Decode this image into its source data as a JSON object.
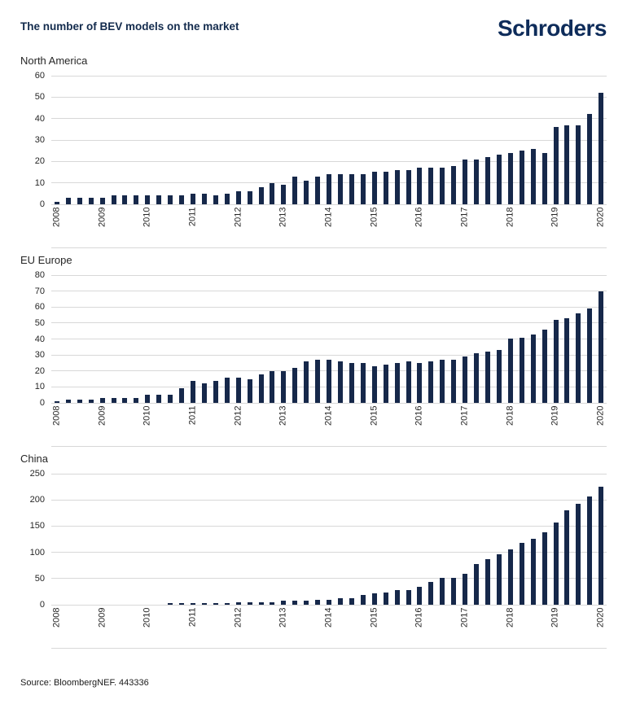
{
  "header": {
    "title": "The number of BEV models on the market",
    "logo_text": "Schroders"
  },
  "footer": {
    "source": "Source: BloombergNEF. 443336"
  },
  "colors": {
    "title_navy": "#132B4D",
    "logo_navy": "#0E2C5A",
    "bar": "#16284A",
    "gridline": "#D8D8D8",
    "axis_text": "#262626"
  },
  "chart_data": [
    {
      "type": "bar",
      "title": "North America",
      "x_unit": "quarter",
      "x_year_labels": [
        "2008",
        "2009",
        "2010",
        "2011",
        "2012",
        "2013",
        "2014",
        "2015",
        "2016",
        "2017",
        "2018",
        "2019",
        "2020"
      ],
      "quarters_per_year": 4,
      "x_range": "2008Q1-2020Q1",
      "values": [
        1,
        3,
        3,
        3,
        3,
        4,
        4,
        4,
        4,
        4,
        4,
        4,
        5,
        5,
        4,
        5,
        6,
        6,
        8,
        10,
        9,
        13,
        11,
        13,
        14,
        14,
        14,
        14,
        15,
        15,
        16,
        16,
        17,
        17,
        17,
        18,
        21,
        21,
        22,
        23,
        24,
        25,
        26,
        24,
        36,
        37,
        37,
        42,
        52
      ],
      "ylim": [
        0,
        60
      ],
      "ytick_step": 10,
      "grid": true
    },
    {
      "type": "bar",
      "title": "EU Europe",
      "x_unit": "quarter",
      "x_year_labels": [
        "2008",
        "2009",
        "2010",
        "2011",
        "2012",
        "2013",
        "2014",
        "2015",
        "2016",
        "2017",
        "2018",
        "2019",
        "2020"
      ],
      "quarters_per_year": 4,
      "x_range": "2008Q1-2020Q1",
      "values": [
        1,
        2,
        2,
        2,
        3,
        3,
        3,
        3,
        5,
        5,
        5,
        9,
        14,
        12,
        14,
        16,
        16,
        15,
        18,
        20,
        20,
        22,
        26,
        27,
        27,
        26,
        25,
        25,
        23,
        24,
        25,
        26,
        25,
        26,
        27,
        27,
        29,
        31,
        32,
        33,
        40,
        41,
        43,
        46,
        52,
        53,
        56,
        59,
        70
      ],
      "ylim": [
        0,
        80
      ],
      "ytick_step": 10,
      "grid": true
    },
    {
      "type": "bar",
      "title": "China",
      "x_unit": "quarter",
      "x_year_labels": [
        "2008",
        "2009",
        "2010",
        "2011",
        "2012",
        "2013",
        "2014",
        "2015",
        "2016",
        "2017",
        "2018",
        "2019",
        "2020"
      ],
      "quarters_per_year": 4,
      "x_range": "2008Q1-2020Q1",
      "values": [
        0,
        0,
        0,
        0,
        0,
        0,
        0,
        0,
        0,
        0,
        1,
        1,
        1,
        1,
        2,
        2,
        4,
        5,
        5,
        5,
        7,
        7,
        8,
        9,
        10,
        12,
        13,
        18,
        22,
        24,
        28,
        28,
        34,
        44,
        51,
        52,
        59,
        77,
        87,
        97,
        105,
        118,
        126,
        138,
        157,
        180,
        193,
        207,
        225
      ],
      "ylim": [
        0,
        250
      ],
      "ytick_step": 50,
      "grid": true
    }
  ]
}
